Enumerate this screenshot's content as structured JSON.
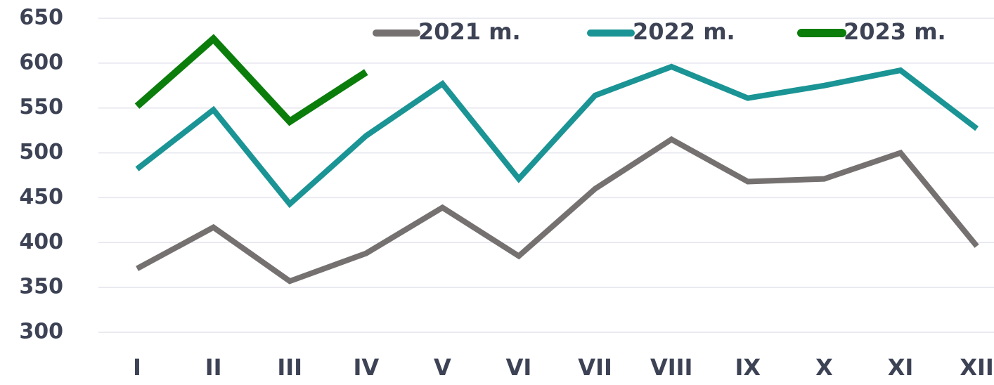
{
  "chart_data": {
    "type": "line",
    "categories": [
      "I",
      "II",
      "III",
      "IV",
      "V",
      "VI",
      "VII",
      "VIII",
      "IX",
      "X",
      "XI",
      "XII"
    ],
    "series": [
      {
        "name": "2021 m.",
        "color": "#767171",
        "values": [
          371,
          417,
          357,
          388,
          439,
          385,
          460,
          515,
          468,
          471,
          500,
          396
        ]
      },
      {
        "name": "2022 m.",
        "color": "#1a9494",
        "values": [
          482,
          548,
          443,
          519,
          577,
          471,
          564,
          596,
          561,
          575,
          592,
          527
        ]
      },
      {
        "name": "2023 m.",
        "color": "#0b7d0b",
        "values": [
          552,
          627,
          535,
          590,
          null,
          null,
          null,
          null,
          null,
          null,
          null,
          null
        ]
      }
    ],
    "ylim": [
      300,
      650
    ],
    "yticks": [
      300,
      350,
      400,
      450,
      500,
      550,
      600,
      650
    ],
    "grid": true,
    "legend": "top"
  }
}
